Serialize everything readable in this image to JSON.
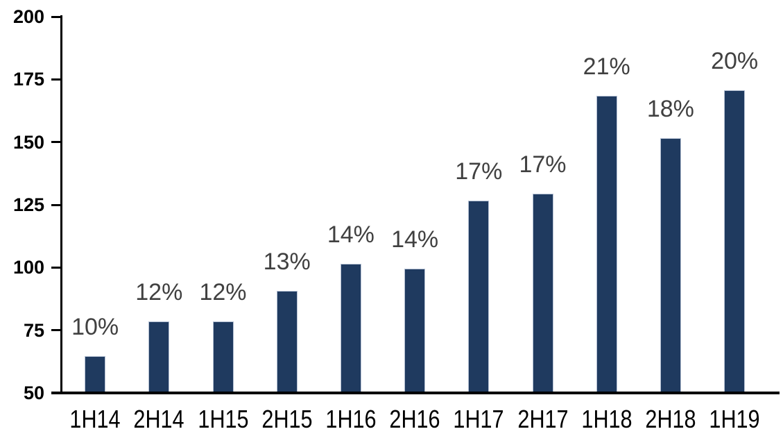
{
  "chart_data": {
    "type": "bar",
    "title": "",
    "xlabel": "",
    "ylabel": "",
    "categories": [
      "1H14",
      "2H14",
      "1H15",
      "2H15",
      "1H16",
      "2H16",
      "1H17",
      "2H17",
      "1H18",
      "2H18",
      "1H19"
    ],
    "values": [
      64,
      78,
      78,
      90,
      101,
      99,
      126,
      129,
      168,
      151,
      170
    ],
    "bar_labels": [
      "10%",
      "12%",
      "12%",
      "13%",
      "14%",
      "14%",
      "17%",
      "17%",
      "21%",
      "18%",
      "20%"
    ],
    "ylim": [
      50,
      200
    ],
    "yticks": [
      50,
      75,
      100,
      125,
      150,
      175,
      200
    ],
    "grid": false,
    "legend_position": "none",
    "colors": {
      "bar_fill": "#1f3a5f",
      "bar_border": "#b3bfd2",
      "axis": "#000000",
      "axis_label": "#000000",
      "data_label": "#404040",
      "background": "#ffffff"
    }
  }
}
